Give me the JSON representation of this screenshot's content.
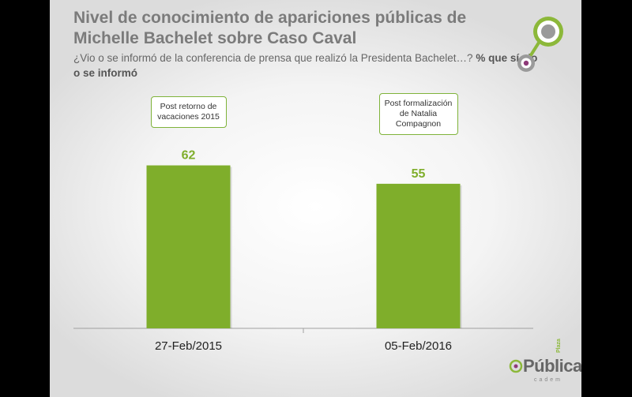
{
  "header": {
    "title": "Nivel de conocimiento de apariciones públicas de Michelle Bachelet  sobre Caso Caval",
    "question": "¿Vio o se informó de la conferencia de prensa que realizó la Presidenta Bachelet…?",
    "question_bold": "% que sí vio o se informó"
  },
  "brand": {
    "word": "Pública",
    "small": "Plaza",
    "sub": "cadem"
  },
  "colors": {
    "bar": "#7fae2b",
    "accent_green": "#8cb83a",
    "accent_purple": "#8e3a78"
  },
  "chart_data": {
    "type": "bar",
    "categories": [
      "27-Feb/2015",
      "05-Feb/2016"
    ],
    "values": [
      62,
      55
    ],
    "value_labels": [
      "62",
      "55"
    ],
    "annotations": [
      "Post retorno de vacaciones 2015",
      "Post formalización de Natalia Compagnon"
    ],
    "ylim": [
      0,
      100
    ],
    "grid": false,
    "legend": "none"
  }
}
